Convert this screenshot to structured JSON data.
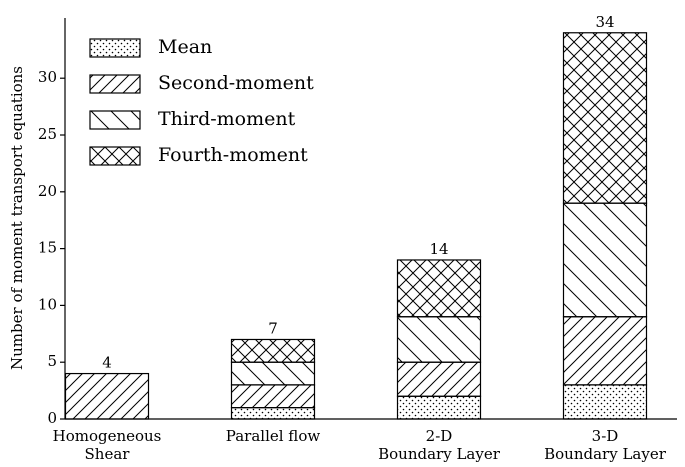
{
  "chart_data": {
    "type": "stacked_bar",
    "ylabel": "Number of moment transport equations",
    "categories": [
      [
        "Homogeneous",
        "Shear"
      ],
      [
        "Parallel flow"
      ],
      [
        "2-D",
        "Boundary Layer"
      ],
      [
        "3-D",
        "Boundary Layer"
      ]
    ],
    "series": [
      {
        "name": "Mean",
        "pattern": "dots",
        "values": [
          0,
          1,
          2,
          3
        ]
      },
      {
        "name": "Second-moment",
        "pattern": "slash",
        "values": [
          4,
          2,
          3,
          6
        ]
      },
      {
        "name": "Third-moment",
        "pattern": "backslash",
        "values": [
          0,
          2,
          4,
          10
        ]
      },
      {
        "name": "Fourth-moment",
        "pattern": "cross",
        "values": [
          0,
          2,
          5,
          15
        ]
      }
    ],
    "totals": [
      4,
      7,
      14,
      34
    ],
    "ylim": [
      0,
      35.3
    ],
    "yticks": [
      0,
      5,
      10,
      15,
      20,
      25,
      30
    ],
    "legend": "upper left"
  }
}
